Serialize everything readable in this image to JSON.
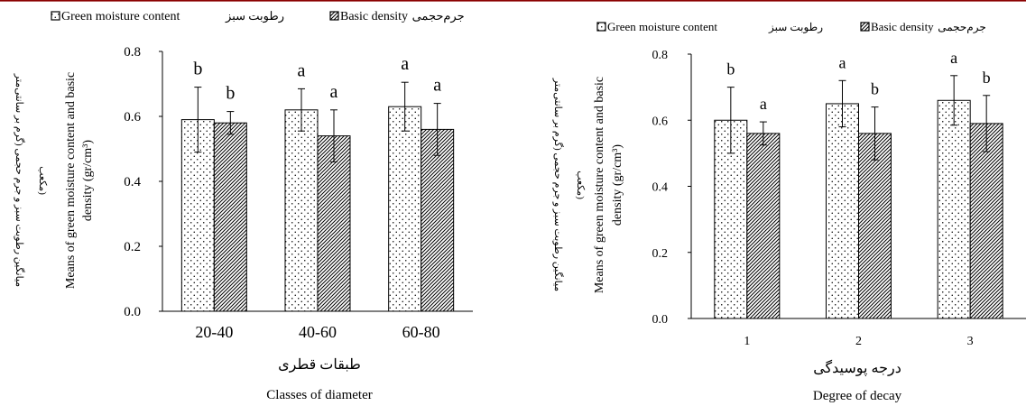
{
  "chart_data": [
    {
      "type": "bar",
      "categories": [
        "20-40",
        "40-60",
        "60-80"
      ],
      "series": [
        {
          "name": "Green moisture content",
          "name_fa": "رطوبت سبز",
          "values": [
            0.59,
            0.62,
            0.63
          ],
          "errors": [
            0.1,
            0.065,
            0.075
          ],
          "letters": [
            "b",
            "a",
            "a"
          ],
          "pattern": "dots"
        },
        {
          "name": "Basic density",
          "name_fa": "جرم‌حجمی",
          "values": [
            0.58,
            0.54,
            0.56
          ],
          "errors": [
            0.035,
            0.08,
            0.08
          ],
          "letters": [
            "b",
            "a",
            "a"
          ],
          "pattern": "hatch"
        }
      ],
      "ylim": [
        0,
        0.8
      ],
      "yticks": [
        "0.0",
        "0.2",
        "0.4",
        "0.6",
        "0.8"
      ],
      "ylabel_en_line1": "Means of green moisture content and basic",
      "ylabel_en_line2": "density (gr/cm³)",
      "ylabel_fa_line1": "میانگین رطوبت سبز و جرم حجمی (گرم بر سانتی‌متر",
      "ylabel_fa_line2": "مکعب)",
      "xlabel_fa": "طبقات قطری",
      "xlabel_en": "Classes of diameter",
      "legend_position": "top"
    },
    {
      "type": "bar",
      "categories": [
        "1",
        "2",
        "3"
      ],
      "series": [
        {
          "name": "Green moisture content",
          "name_fa": "رطوبت سبز",
          "values": [
            0.6,
            0.65,
            0.66
          ],
          "errors": [
            0.1,
            0.07,
            0.075
          ],
          "letters": [
            "b",
            "a",
            "a"
          ],
          "pattern": "dots"
        },
        {
          "name": "Basic density",
          "name_fa": "جرم‌حجمی",
          "values": [
            0.56,
            0.56,
            0.59
          ],
          "errors": [
            0.035,
            0.08,
            0.085
          ],
          "letters": [
            "a",
            "b",
            "b"
          ],
          "pattern": "hatch"
        }
      ],
      "ylim": [
        0,
        0.8
      ],
      "yticks": [
        "0.0",
        "0.2",
        "0.4",
        "0.6",
        "0.8"
      ],
      "ylabel_en_line1": "Means of green moisture content and basic",
      "ylabel_en_line2": "density (gr/cm³)",
      "ylabel_fa_line1": "میانگین رطوبت سبز و جرم حجمی (گرم بر سانتی‌متر",
      "ylabel_fa_line2": "مکعب)",
      "xlabel_fa": "درجه پوسیدگی",
      "xlabel_en": "Degree of decay",
      "legend_position": "top"
    }
  ],
  "colors": {
    "ink": "#000000",
    "background": "#ffffff",
    "topRule": "#8B0000"
  }
}
